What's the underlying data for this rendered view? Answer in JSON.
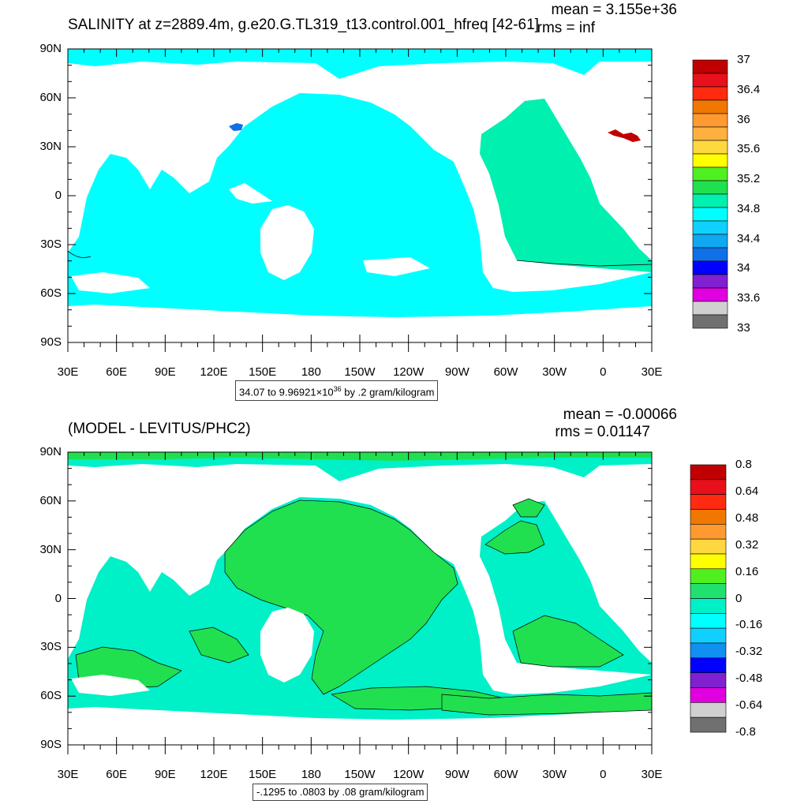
{
  "top": {
    "title": "SALINITY at z=2889.4m, g.e20.G.TL319_t13.control.001_hfreq [42-61]",
    "mean": "mean = 3.155e+36",
    "rms": "rms = inf",
    "note_prefix": "34.07 to 9.96921×10",
    "note_exp": "36",
    "note_suffix": " by .2 gram/kilogram",
    "colorbar": {
      "labels": [
        "37",
        "36.4",
        "36",
        "35.6",
        "35.2",
        "34.8",
        "34.4",
        "34",
        "33.6",
        "33"
      ],
      "colors": [
        "#c00000",
        "#e8101a",
        "#ff2a10",
        "#f07800",
        "#ff9a30",
        "#ffb040",
        "#ffd840",
        "#ffff00",
        "#50f020",
        "#20e050",
        "#00f0b0",
        "#00ffff",
        "#10d0ff",
        "#10a8f0",
        "#1070e8",
        "#0000ff",
        "#8020d0",
        "#e000e0",
        "#d0d0d0",
        "#707070"
      ]
    }
  },
  "bottom": {
    "title": "(MODEL - LEVITUS/PHC2)",
    "mean": "mean = -0.00066",
    "rms": "rms = 0.01147",
    "note": "-.1295 to .0803 by .08 gram/kilogram",
    "colorbar": {
      "labels": [
        "0.8",
        "0.64",
        "0.48",
        "0.32",
        "0.16",
        "0",
        "-0.16",
        "-0.32",
        "-0.48",
        "-0.64",
        "-0.8"
      ],
      "colors": [
        "#c00000",
        "#e8101a",
        "#ff2a10",
        "#f07800",
        "#ff9a30",
        "#ffd840",
        "#ffff00",
        "#50f020",
        "#20e070",
        "#00f0c8",
        "#00ffff",
        "#10d0ff",
        "#1090f0",
        "#0000ff",
        "#8020d0",
        "#e000e0",
        "#d0d0d0",
        "#707070"
      ]
    }
  },
  "axes": {
    "lat_labels": [
      "90N",
      "60N",
      "30N",
      "0",
      "30S",
      "60S",
      "90S"
    ],
    "lon_labels": [
      "30E",
      "60E",
      "90E",
      "120E",
      "150E",
      "180",
      "150W",
      "120W",
      "90W",
      "60W",
      "30W",
      "0",
      "30E"
    ]
  },
  "colors": {
    "ocean_top": "#00ffff",
    "atlantic_top": "#00f0b0",
    "ocean_bottom": "#00f0c8",
    "anomaly_positive": "#20e050",
    "deep_blue_patch": "#1070e8",
    "red_patch": "#c00000"
  }
}
